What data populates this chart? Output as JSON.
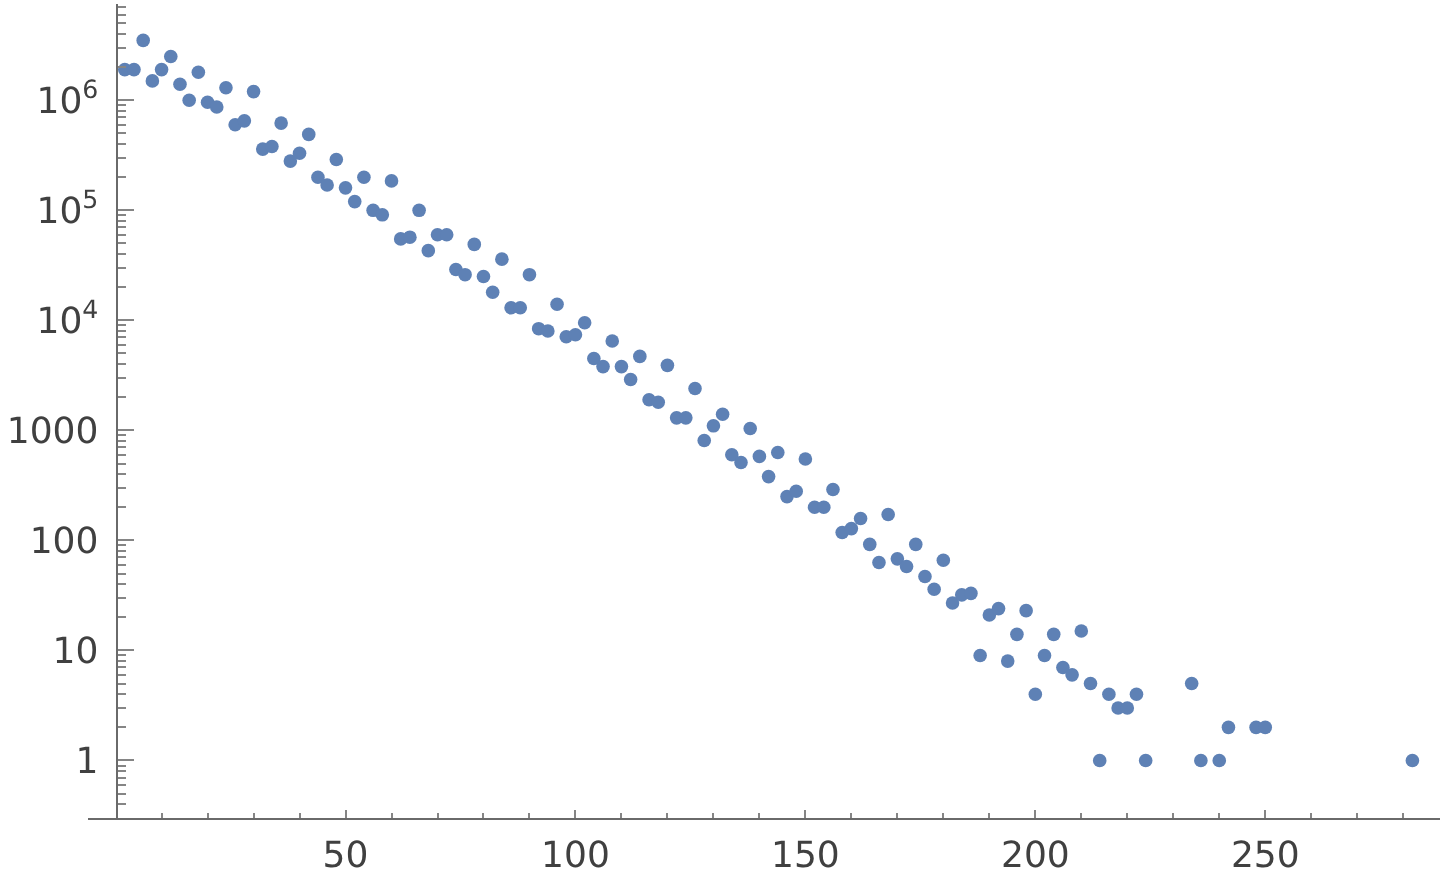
{
  "chart_data": {
    "type": "scatter",
    "marker": "circle",
    "color": "#5e81b5",
    "log": "y",
    "grid": false,
    "x": [
      2,
      4,
      6,
      8,
      10,
      12,
      14,
      16,
      18,
      20,
      22,
      24,
      26,
      28,
      30,
      32,
      34,
      36,
      38,
      40,
      42,
      44,
      46,
      48,
      50,
      52,
      54,
      56,
      58,
      60,
      62,
      64,
      66,
      68,
      70,
      72,
      74,
      76,
      78,
      80,
      82,
      84,
      86,
      88,
      90,
      92,
      94,
      96,
      98,
      100,
      102,
      104,
      106,
      108,
      110,
      112,
      114,
      116,
      118,
      120,
      122,
      124,
      126,
      128,
      130,
      132,
      134,
      136,
      138,
      140,
      142,
      144,
      146,
      148,
      150,
      152,
      154,
      156,
      158,
      160,
      162,
      164,
      166,
      168,
      170,
      172,
      174,
      176,
      178,
      180,
      182,
      184,
      186,
      188,
      190,
      192,
      194,
      196,
      198,
      200,
      202,
      204,
      206,
      208,
      210,
      212,
      214,
      216,
      218,
      220,
      222,
      224,
      234,
      236,
      240,
      242,
      248,
      250,
      282
    ],
    "values": [
      1900000,
      1900000,
      3500000,
      1500000,
      1900000,
      2500000,
      1400000,
      1000000,
      1800000,
      960000,
      870000,
      1300000,
      600000,
      650000,
      1200000,
      360000,
      380000,
      620000,
      280000,
      330000,
      490000,
      200000,
      170000,
      290000,
      160000,
      120000,
      200000,
      100000,
      91000,
      185000,
      55000,
      57000,
      100000,
      43000,
      60000,
      60000,
      29000,
      26000,
      49000,
      25000,
      18000,
      36000,
      13000,
      13000,
      26000,
      8400,
      8000,
      14000,
      7100,
      7400,
      9500,
      4500,
      3800,
      6500,
      3800,
      2900,
      4700,
      1900,
      1800,
      3900,
      1300,
      1300,
      2400,
      810,
      1100,
      1400,
      600,
      510,
      1040,
      580,
      380,
      630,
      250,
      280,
      550,
      200,
      200,
      290,
      118,
      128,
      158,
      92,
      63,
      172,
      68,
      58,
      92,
      47,
      36,
      66,
      27,
      32,
      33,
      9,
      21,
      24,
      8,
      14,
      23,
      4,
      9,
      14,
      7,
      6,
      15,
      5,
      1,
      4,
      3,
      3,
      4,
      1,
      5,
      1,
      1,
      2,
      2,
      2,
      1
    ],
    "xlim": [
      -6,
      288
    ],
    "xticks": [
      {
        "value": 10,
        "label": null
      },
      {
        "value": 20,
        "label": null
      },
      {
        "value": 30,
        "label": null
      },
      {
        "value": 40,
        "label": null
      },
      50,
      {
        "value": 60,
        "label": null
      },
      {
        "value": 70,
        "label": null
      },
      {
        "value": 80,
        "label": null
      },
      {
        "value": 90,
        "label": null
      },
      100,
      {
        "value": 110,
        "label": null
      },
      {
        "value": 120,
        "label": null
      },
      {
        "value": 130,
        "label": null
      },
      {
        "value": 140,
        "label": null
      },
      150,
      {
        "value": 160,
        "label": null
      },
      {
        "value": 170,
        "label": null
      },
      {
        "value": 180,
        "label": null
      },
      {
        "value": 190,
        "label": null
      },
      200,
      {
        "value": 210,
        "label": null
      },
      {
        "value": 220,
        "label": null
      },
      {
        "value": 230,
        "label": null
      },
      {
        "value": 240,
        "label": null
      },
      250,
      {
        "value": 260,
        "label": null
      },
      {
        "value": 270,
        "label": null
      },
      {
        "value": 280,
        "label": null
      }
    ],
    "ylim": [
      0.3,
      7500000
    ],
    "yticks": [
      {
        "value": 0.4,
        "label": null
      },
      {
        "value": 0.5,
        "label": null
      },
      {
        "value": 0.6,
        "label": null
      },
      {
        "value": 0.7,
        "label": null
      },
      {
        "value": 0.8,
        "label": null
      },
      {
        "value": 0.9,
        "label": null
      },
      1,
      {
        "value": 2,
        "label": null
      },
      {
        "value": 3,
        "label": null
      },
      {
        "value": 4,
        "label": null
      },
      {
        "value": 5,
        "label": null
      },
      {
        "value": 6,
        "label": null
      },
      {
        "value": 7,
        "label": null
      },
      {
        "value": 8,
        "label": null
      },
      {
        "value": 9,
        "label": null
      },
      10,
      {
        "value": 20,
        "label": null
      },
      {
        "value": 30,
        "label": null
      },
      {
        "value": 40,
        "label": null
      },
      {
        "value": 50,
        "label": null
      },
      {
        "value": 60,
        "label": null
      },
      {
        "value": 70,
        "label": null
      },
      {
        "value": 80,
        "label": null
      },
      {
        "value": 90,
        "label": null
      },
      100,
      {
        "value": 200,
        "label": null
      },
      {
        "value": 300,
        "label": null
      },
      {
        "value": 400,
        "label": null
      },
      {
        "value": 500,
        "label": null
      },
      {
        "value": 600,
        "label": null
      },
      {
        "value": 700,
        "label": null
      },
      {
        "value": 800,
        "label": null
      },
      {
        "value": 900,
        "label": null
      },
      1000,
      {
        "value": 2000,
        "label": null
      },
      {
        "value": 3000,
        "label": null
      },
      {
        "value": 4000,
        "label": null
      },
      {
        "value": 5000,
        "label": null
      },
      {
        "value": 6000,
        "label": null
      },
      {
        "value": 7000,
        "label": null
      },
      {
        "value": 8000,
        "label": null
      },
      {
        "value": 9000,
        "label": null
      },
      {
        "value": 10000,
        "label": "10$^{4}$"
      },
      {
        "value": 20000,
        "label": null
      },
      {
        "value": 30000,
        "label": null
      },
      {
        "value": 40000,
        "label": null
      },
      {
        "value": 50000,
        "label": null
      },
      {
        "value": 60000,
        "label": null
      },
      {
        "value": 70000,
        "label": null
      },
      {
        "value": 80000,
        "label": null
      },
      {
        "value": 90000,
        "label": null
      },
      {
        "value": 100000,
        "label": "10$^{5}$"
      },
      {
        "value": 200000,
        "label": null
      },
      {
        "value": 300000,
        "label": null
      },
      {
        "value": 400000,
        "label": null
      },
      {
        "value": 500000,
        "label": null
      },
      {
        "value": 600000,
        "label": null
      },
      {
        "value": 700000,
        "label": null
      },
      {
        "value": 800000,
        "label": null
      },
      {
        "value": 900000,
        "label": null
      },
      {
        "value": 1000000,
        "label": "10$^{6}$"
      },
      {
        "value": 2000000,
        "label": null
      },
      {
        "value": 3000000,
        "label": null
      },
      {
        "value": 4000000,
        "label": null
      },
      {
        "value": 5000000,
        "label": null
      },
      {
        "value": 6000000,
        "label": null
      },
      {
        "value": 7000000,
        "label": null
      }
    ]
  }
}
